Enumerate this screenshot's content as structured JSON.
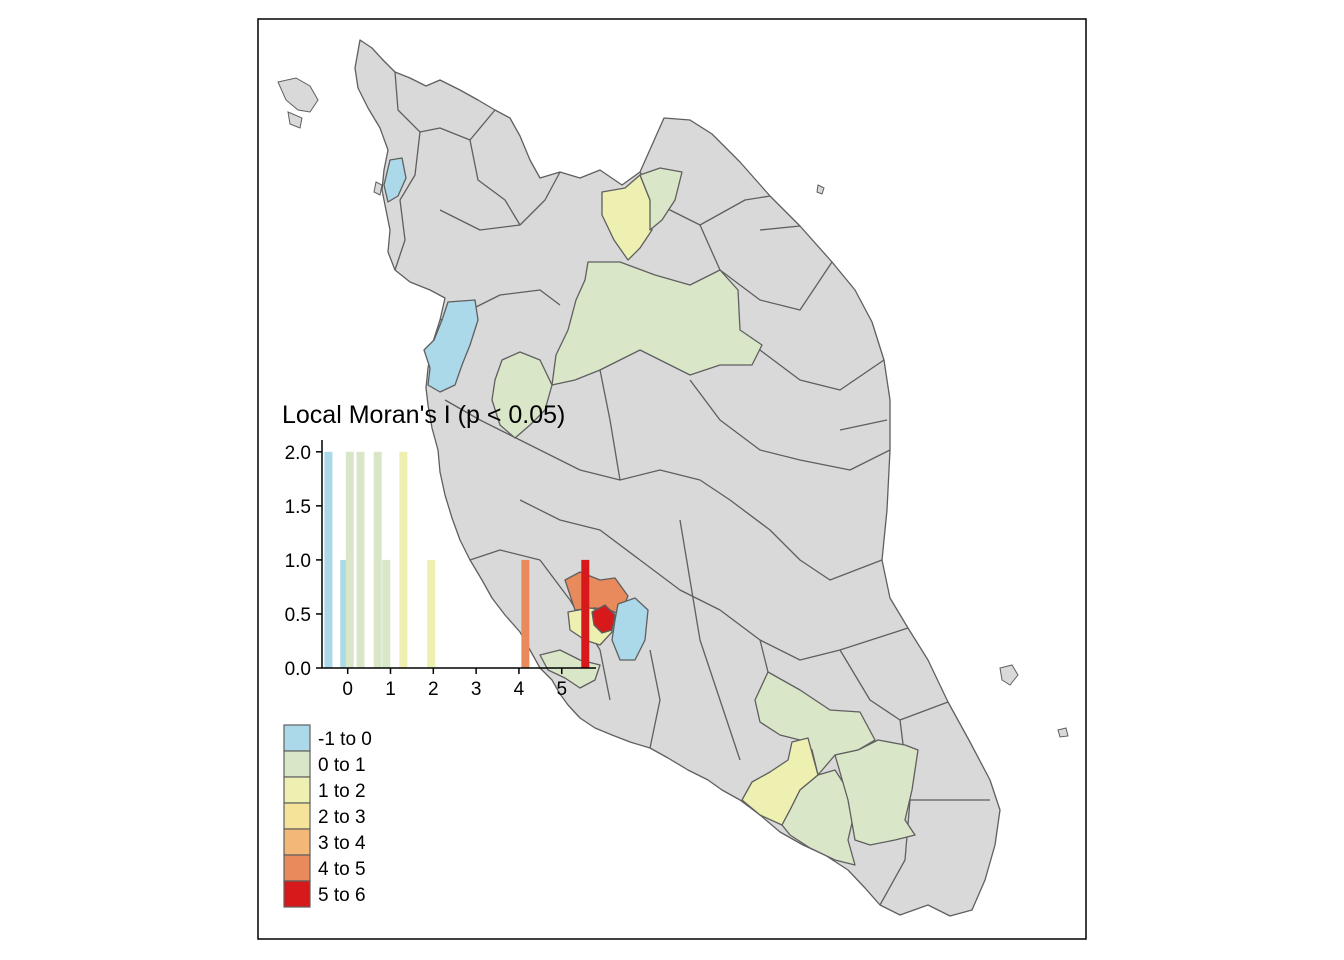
{
  "title": "Local Moran's I (p < 0.05)",
  "colors": {
    "base": "#d9d9d9",
    "border": "#5f5f5f",
    "frame": "#000000"
  },
  "legend": {
    "items": [
      {
        "label": "-1 to 0",
        "color": "#abd9e9"
      },
      {
        "label": "0 to 1",
        "color": "#d9e6c8"
      },
      {
        "label": "1 to 2",
        "color": "#eef0b2"
      },
      {
        "label": "2 to 3",
        "color": "#f6e39a"
      },
      {
        "label": "3 to 4",
        "color": "#f3b777"
      },
      {
        "label": "4 to 5",
        "color": "#e98a5c"
      },
      {
        "label": "5 to 6",
        "color": "#d7191c"
      }
    ]
  },
  "chart_data": {
    "type": "bar",
    "title": "Local Moran's I (p < 0.05)",
    "xlim": [
      -0.6,
      5.8
    ],
    "ylim": [
      0,
      2.1
    ],
    "x_ticks": [
      0,
      1,
      2,
      3,
      4,
      5
    ],
    "y_ticks": [
      0.0,
      0.5,
      1.0,
      1.5,
      2.0
    ],
    "y_tick_labels": [
      "0.0",
      "0.5",
      "1.0",
      "1.5",
      "2.0"
    ],
    "bars": [
      {
        "x": -0.45,
        "value": 2,
        "color": "#abd9e9"
      },
      {
        "x": -0.08,
        "value": 1,
        "color": "#abd9e9"
      },
      {
        "x": 0.05,
        "value": 2,
        "color": "#d9e6c8"
      },
      {
        "x": 0.3,
        "value": 2,
        "color": "#d9e6c8"
      },
      {
        "x": 0.7,
        "value": 2,
        "color": "#d9e6c8"
      },
      {
        "x": 0.9,
        "value": 1,
        "color": "#d9e6c8"
      },
      {
        "x": 1.3,
        "value": 2,
        "color": "#eef0b2"
      },
      {
        "x": 1.95,
        "value": 1,
        "color": "#eef0b2"
      },
      {
        "x": 4.15,
        "value": 1,
        "color": "#e98a5c"
      },
      {
        "x": 5.55,
        "value": 1,
        "color": "#d7191c"
      }
    ]
  }
}
